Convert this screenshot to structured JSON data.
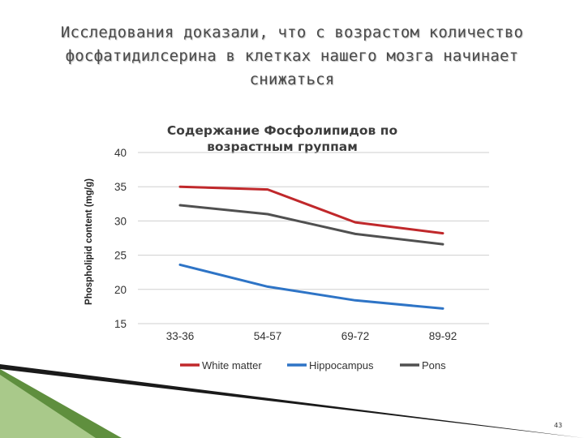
{
  "slide": {
    "title": "Исследования доказали, что с возрастом количество фосфатидилсерина в клетках нашего мозга начинает снижаться",
    "page_number": "43",
    "colors": {
      "accent_green": "#5f8f3e",
      "accent_dark": "#1a1a1a"
    }
  },
  "chart_data": {
    "type": "line",
    "title_lines": [
      "Содержание Фосфолипидов по",
      "возрастным группам"
    ],
    "ylabel": "Phospholipid content (mg/g)",
    "xlabel": "",
    "categories": [
      "33-36",
      "54-57",
      "69-72",
      "89-92"
    ],
    "ylim": [
      15,
      40
    ],
    "yticks": [
      15,
      20,
      25,
      30,
      35,
      40
    ],
    "grid": true,
    "legend_position": "bottom",
    "series": [
      {
        "name": "White matter",
        "values": [
          35.0,
          34.6,
          29.8,
          28.2
        ],
        "color": "#c0282b"
      },
      {
        "name": "Hippocampus",
        "values": [
          23.6,
          20.4,
          18.4,
          17.2
        ],
        "color": "#2e74c6"
      },
      {
        "name": "Pons",
        "values": [
          32.3,
          31.0,
          28.1,
          26.6
        ],
        "color": "#505050"
      }
    ]
  }
}
